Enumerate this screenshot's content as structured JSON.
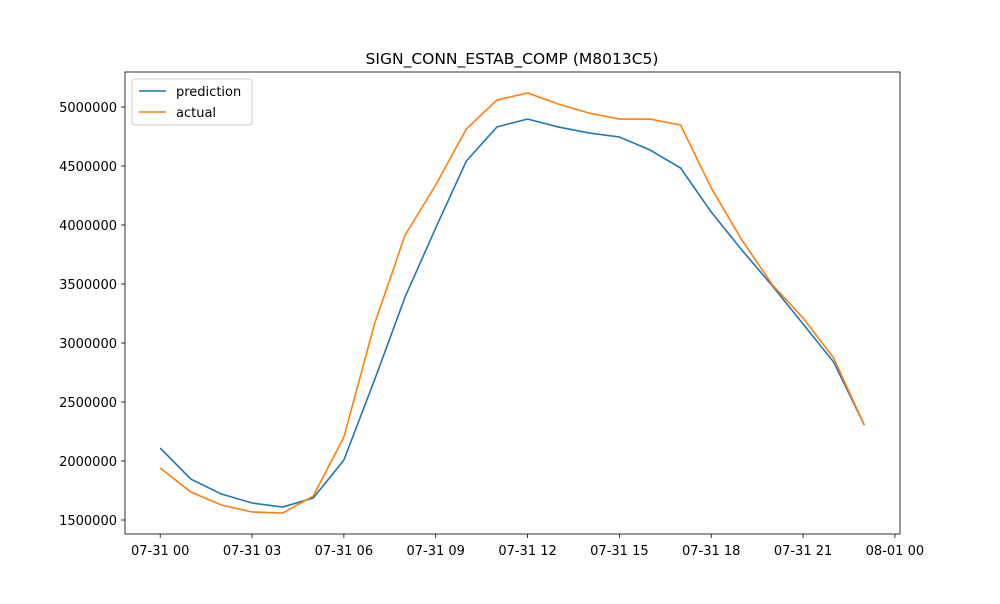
{
  "chart_data": {
    "type": "line",
    "title": "SIGN_CONN_ESTAB_COMP (M8013C5)",
    "x": [
      "07-31 00",
      "07-31 01",
      "07-31 02",
      "07-31 03",
      "07-31 04",
      "07-31 05",
      "07-31 06",
      "07-31 07",
      "07-31 08",
      "07-31 09",
      "07-31 10",
      "07-31 11",
      "07-31 12",
      "07-31 13",
      "07-31 14",
      "07-31 15",
      "07-31 16",
      "07-31 17",
      "07-31 18",
      "07-31 19",
      "07-31 20",
      "07-31 21",
      "07-31 22",
      "07-31 23"
    ],
    "series": [
      {
        "name": "prediction",
        "color": "#1f77b4",
        "values": [
          2110000,
          1847000,
          1720000,
          1644000,
          1610000,
          1686000,
          2008000,
          2686000,
          3390000,
          3975000,
          4542000,
          4831000,
          4898000,
          4831000,
          4780000,
          4746000,
          4636000,
          4483000,
          4110000,
          3788000,
          3483000,
          3161000,
          2839000,
          2305000
        ]
      },
      {
        "name": "actual",
        "color": "#ff7f0e",
        "values": [
          1941000,
          1737000,
          1627000,
          1568000,
          1559000,
          1703000,
          2203000,
          3161000,
          3915000,
          4339000,
          4814000,
          5059000,
          5119000,
          5025000,
          4949000,
          4898000,
          4898000,
          4847000,
          4314000,
          3873000,
          3492000,
          3212000,
          2873000,
          2305000
        ]
      }
    ],
    "xlim": [
      "07-30 22:51",
      "08-01 00:10"
    ],
    "xticks": [
      "07-31 00",
      "07-31 03",
      "07-31 06",
      "07-31 09",
      "07-31 12",
      "07-31 15",
      "07-31 18",
      "07-31 21",
      "08-01 00"
    ],
    "ylim": [
      1381400,
      5296600
    ],
    "yticks": [
      1500000,
      2000000,
      2500000,
      3000000,
      3500000,
      4000000,
      4500000,
      5000000
    ],
    "legend": "upper left",
    "grid": false
  }
}
